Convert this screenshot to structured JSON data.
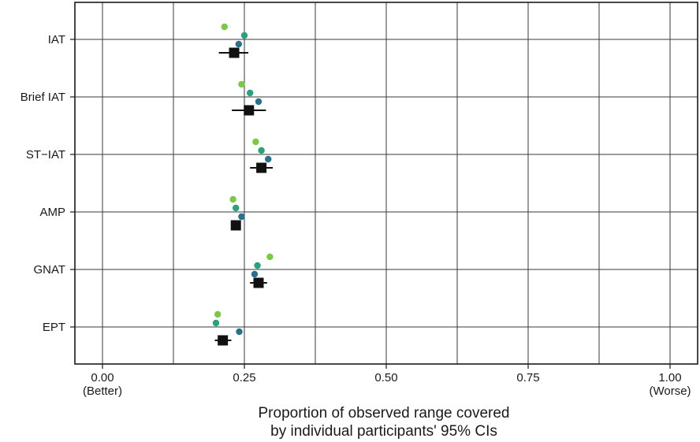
{
  "chart_data": {
    "type": "scatter",
    "title": "",
    "xlabel_lines": [
      "Proportion of observed range covered",
      "by individual participants' 95% CIs"
    ],
    "xlim": [
      -0.05,
      1.05
    ],
    "x_ticks": [
      {
        "value": 0.0,
        "label": "0.00",
        "sublabel": "(Better)"
      },
      {
        "value": 0.25,
        "label": "0.25",
        "sublabel": ""
      },
      {
        "value": 0.5,
        "label": "0.50",
        "sublabel": ""
      },
      {
        "value": 0.75,
        "label": "0.75",
        "sublabel": ""
      },
      {
        "value": 1.0,
        "label": "1.00",
        "sublabel": "(Worse)"
      }
    ],
    "categories": [
      "IAT",
      "Brief IAT",
      "ST−IAT",
      "AMP",
      "GNAT",
      "EPT"
    ],
    "grid": true,
    "dot_colors": [
      "#7ac943",
      "#28a27a",
      "#26718b"
    ],
    "summary_color": "#111111",
    "dots": [
      {
        "category": "IAT",
        "values": [
          0.215,
          0.25,
          0.24
        ]
      },
      {
        "category": "Brief IAT",
        "values": [
          0.245,
          0.26,
          0.275
        ]
      },
      {
        "category": "ST−IAT",
        "values": [
          0.27,
          0.28,
          0.292
        ]
      },
      {
        "category": "AMP",
        "values": [
          0.23,
          0.235,
          0.245
        ]
      },
      {
        "category": "GNAT",
        "values": [
          0.295,
          0.273,
          0.268
        ]
      },
      {
        "category": "EPT",
        "values": [
          0.203,
          0.2,
          0.241
        ]
      }
    ],
    "summary": [
      {
        "category": "IAT",
        "estimate": 0.232,
        "ci_low": 0.205,
        "ci_high": 0.257
      },
      {
        "category": "Brief IAT",
        "estimate": 0.258,
        "ci_low": 0.228,
        "ci_high": 0.288
      },
      {
        "category": "ST−IAT",
        "estimate": 0.28,
        "ci_low": 0.26,
        "ci_high": 0.3
      },
      {
        "category": "AMP",
        "estimate": 0.235,
        "ci_low": 0.228,
        "ci_high": 0.242
      },
      {
        "category": "GNAT",
        "estimate": 0.275,
        "ci_low": 0.26,
        "ci_high": 0.29
      },
      {
        "category": "EPT",
        "estimate": 0.212,
        "ci_low": 0.198,
        "ci_high": 0.227
      }
    ]
  }
}
